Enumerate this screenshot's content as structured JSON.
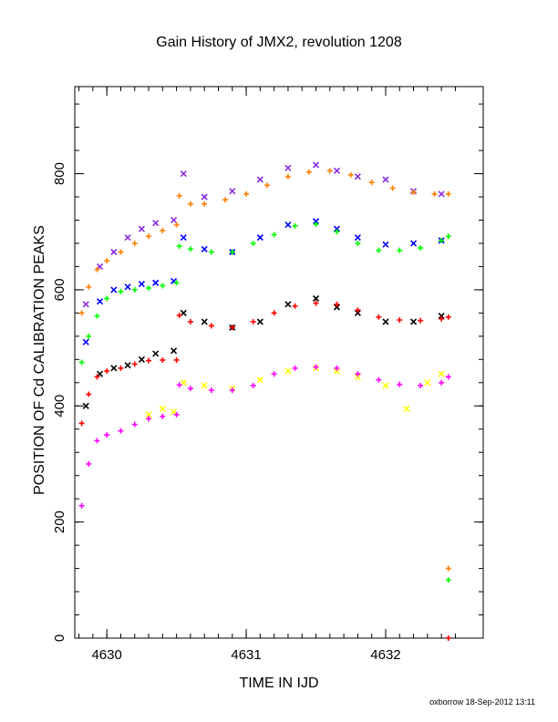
{
  "chart_data": {
    "type": "scatter",
    "title": "Gain History of JMX2, revolution 1208",
    "xlabel": "TIME IN IJD",
    "ylabel": "POSITION OF Cd CALIBRATION PEAKS",
    "xlim": [
      4629.77,
      4632.7
    ],
    "ylim": [
      0,
      950
    ],
    "x_ticks": [
      4630,
      4631,
      4632
    ],
    "x_tick_labels": [
      "4630",
      "4631",
      "4632"
    ],
    "y_ticks": [
      0,
      200,
      400,
      600,
      800
    ],
    "y_tick_labels": [
      "0",
      "200",
      "400",
      "600",
      "800"
    ],
    "grid": false,
    "legend": "none",
    "footer": "oxborrow 18-Sep-2012 13:11",
    "series": [
      {
        "color": "#8a2be2",
        "marker": "x",
        "x": [
          4629.85,
          4629.95,
          4630.05,
          4630.15,
          4630.25,
          4630.35,
          4630.48,
          4630.55,
          4630.7,
          4630.9,
          4631.1,
          4631.3,
          4631.5,
          4631.65,
          4631.8,
          4632.0,
          4632.2,
          4632.4
        ],
        "y": [
          575,
          640,
          665,
          690,
          705,
          715,
          720,
          800,
          760,
          770,
          790,
          810,
          815,
          805,
          795,
          790,
          770,
          765
        ]
      },
      {
        "color": "#ff7f00",
        "marker": "+",
        "x": [
          4629.82,
          4629.87,
          4629.93,
          4630.0,
          4630.1,
          4630.2,
          4630.3,
          4630.4,
          4630.5,
          4630.52,
          4630.6,
          4630.7,
          4630.85,
          4631.0,
          4631.15,
          4631.3,
          4631.45,
          4631.6,
          4631.75,
          4631.9,
          4632.05,
          4632.2,
          4632.35,
          4632.45
        ],
        "y": [
          560,
          605,
          635,
          650,
          665,
          680,
          692,
          702,
          712,
          762,
          748,
          748,
          755,
          765,
          780,
          795,
          803,
          805,
          798,
          785,
          775,
          768,
          765,
          765
        ]
      },
      {
        "color": "#0000ff",
        "marker": "x",
        "x": [
          4629.85,
          4629.95,
          4630.05,
          4630.15,
          4630.25,
          4630.35,
          4630.48,
          4630.55,
          4630.7,
          4630.9,
          4631.1,
          4631.3,
          4631.5,
          4631.65,
          4631.8,
          4632.0,
          4632.2,
          4632.4
        ],
        "y": [
          510,
          580,
          600,
          605,
          610,
          612,
          615,
          690,
          670,
          665,
          690,
          712,
          718,
          705,
          690,
          678,
          680,
          685
        ]
      },
      {
        "color": "#00ff00",
        "marker": "+",
        "x": [
          4629.82,
          4629.87,
          4629.93,
          4630.0,
          4630.1,
          4630.2,
          4630.3,
          4630.4,
          4630.5,
          4630.52,
          4630.6,
          4630.75,
          4630.9,
          4631.05,
          4631.2,
          4631.35,
          4631.5,
          4631.65,
          4631.8,
          4631.95,
          4632.1,
          4632.25,
          4632.4,
          4632.45
        ],
        "y": [
          475,
          520,
          555,
          585,
          597,
          600,
          603,
          607,
          612,
          675,
          670,
          665,
          665,
          680,
          695,
          710,
          713,
          700,
          680,
          668,
          668,
          672,
          685,
          692
        ]
      },
      {
        "color": "#000000",
        "marker": "x",
        "x": [
          4629.85,
          4629.95,
          4630.05,
          4630.15,
          4630.25,
          4630.35,
          4630.48,
          4630.55,
          4630.7,
          4630.9,
          4631.1,
          4631.3,
          4631.5,
          4631.65,
          4631.8,
          4632.0,
          4632.2,
          4632.4
        ],
        "y": [
          400,
          455,
          465,
          470,
          480,
          490,
          495,
          560,
          545,
          535,
          545,
          575,
          585,
          570,
          560,
          545,
          545,
          555
        ]
      },
      {
        "color": "#ff0000",
        "marker": "+",
        "x": [
          4629.82,
          4629.87,
          4629.93,
          4630.0,
          4630.1,
          4630.2,
          4630.3,
          4630.4,
          4630.5,
          4630.52,
          4630.6,
          4630.75,
          4630.9,
          4631.05,
          4631.2,
          4631.35,
          4631.5,
          4631.65,
          4631.8,
          4631.95,
          4632.1,
          4632.25,
          4632.4,
          4632.45
        ],
        "y": [
          370,
          420,
          450,
          460,
          465,
          472,
          478,
          479,
          479,
          556,
          545,
          538,
          535,
          545,
          560,
          572,
          577,
          575,
          565,
          553,
          548,
          547,
          550,
          553
        ]
      },
      {
        "color": "#ffff00",
        "marker": "x",
        "x": [
          4630.3,
          4630.4,
          4630.48,
          4630.55,
          4630.7,
          4630.9,
          4631.1,
          4631.3,
          4631.5,
          4631.65,
          4631.8,
          4632.0,
          4632.15,
          4632.3,
          4632.4
        ],
        "y": [
          385,
          395,
          390,
          440,
          435,
          430,
          445,
          460,
          465,
          460,
          450,
          435,
          395,
          440,
          455
        ]
      },
      {
        "color": "#ff00ff",
        "marker": "+",
        "x": [
          4629.82,
          4629.87,
          4629.93,
          4630.0,
          4630.1,
          4630.2,
          4630.3,
          4630.4,
          4630.5,
          4630.52,
          4630.6,
          4630.75,
          4630.9,
          4631.05,
          4631.2,
          4631.35,
          4631.5,
          4631.65,
          4631.8,
          4631.95,
          4632.1,
          4632.25,
          4632.4,
          4632.45
        ],
        "y": [
          228,
          300,
          340,
          350,
          357,
          368,
          378,
          382,
          385,
          436,
          430,
          427,
          427,
          435,
          455,
          465,
          467,
          465,
          455,
          445,
          437,
          435,
          440,
          450
        ]
      },
      {
        "color": "#ff7f00",
        "marker": "+",
        "x": [
          4632.45
        ],
        "y": [
          120
        ]
      },
      {
        "color": "#00ff00",
        "marker": "+",
        "x": [
          4632.45
        ],
        "y": [
          100
        ]
      },
      {
        "color": "#ff0000",
        "marker": "+",
        "x": [
          4632.45
        ],
        "y": [
          0
        ]
      }
    ]
  }
}
